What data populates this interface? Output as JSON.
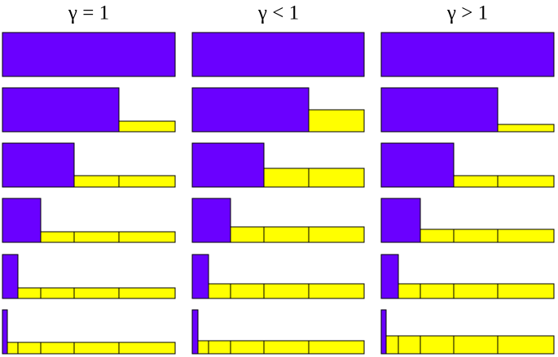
{
  "columns": [
    {
      "title": "γ = 1"
    },
    {
      "title": "γ < 1"
    },
    {
      "title": "γ > 1"
    }
  ]
}
